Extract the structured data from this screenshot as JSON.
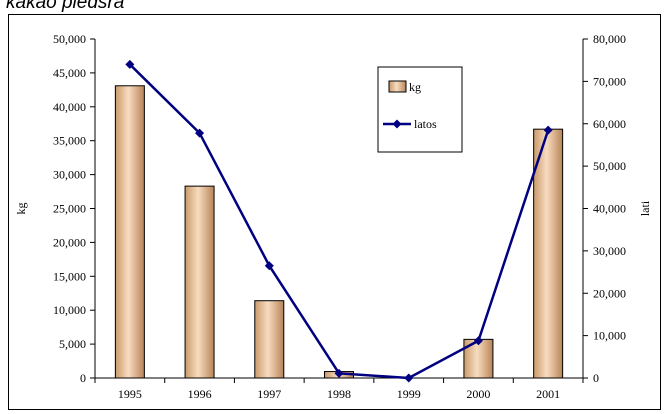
{
  "header": {
    "text": "kakao pledsra"
  },
  "colors": {
    "bar_fill_left": "#c99a6a",
    "bar_fill_mid": "#f8dcc0",
    "bar_fill_right": "#b88458",
    "line": "#000080",
    "axis": "#000000"
  },
  "chart_data": {
    "type": "bar",
    "categories": [
      "1995",
      "1996",
      "1997",
      "1998",
      "1999",
      "2000",
      "2001"
    ],
    "series": [
      {
        "name": "kg",
        "kind": "bar",
        "axis": "left",
        "values": [
          43100,
          28300,
          11400,
          950,
          0,
          5700,
          36700
        ]
      },
      {
        "name": "latos",
        "kind": "line",
        "axis": "right",
        "marker": "diamond",
        "values": [
          74000,
          57800,
          26500,
          1100,
          0,
          8800,
          58500
        ]
      }
    ],
    "ylabel": "kg",
    "y2label": "lati",
    "ylim": [
      0,
      50000
    ],
    "y2lim": [
      0,
      80000
    ],
    "yticks": [
      "0",
      "5,000",
      "10,000",
      "15,000",
      "20,000",
      "25,000",
      "30,000",
      "35,000",
      "40,000",
      "45,000",
      "50,000"
    ],
    "y2ticks": [
      "0",
      "10,000",
      "20,000",
      "30,000",
      "40,000",
      "50,000",
      "60,000",
      "70,000",
      "80,000"
    ],
    "legend_position": "top-right",
    "grid": false
  }
}
